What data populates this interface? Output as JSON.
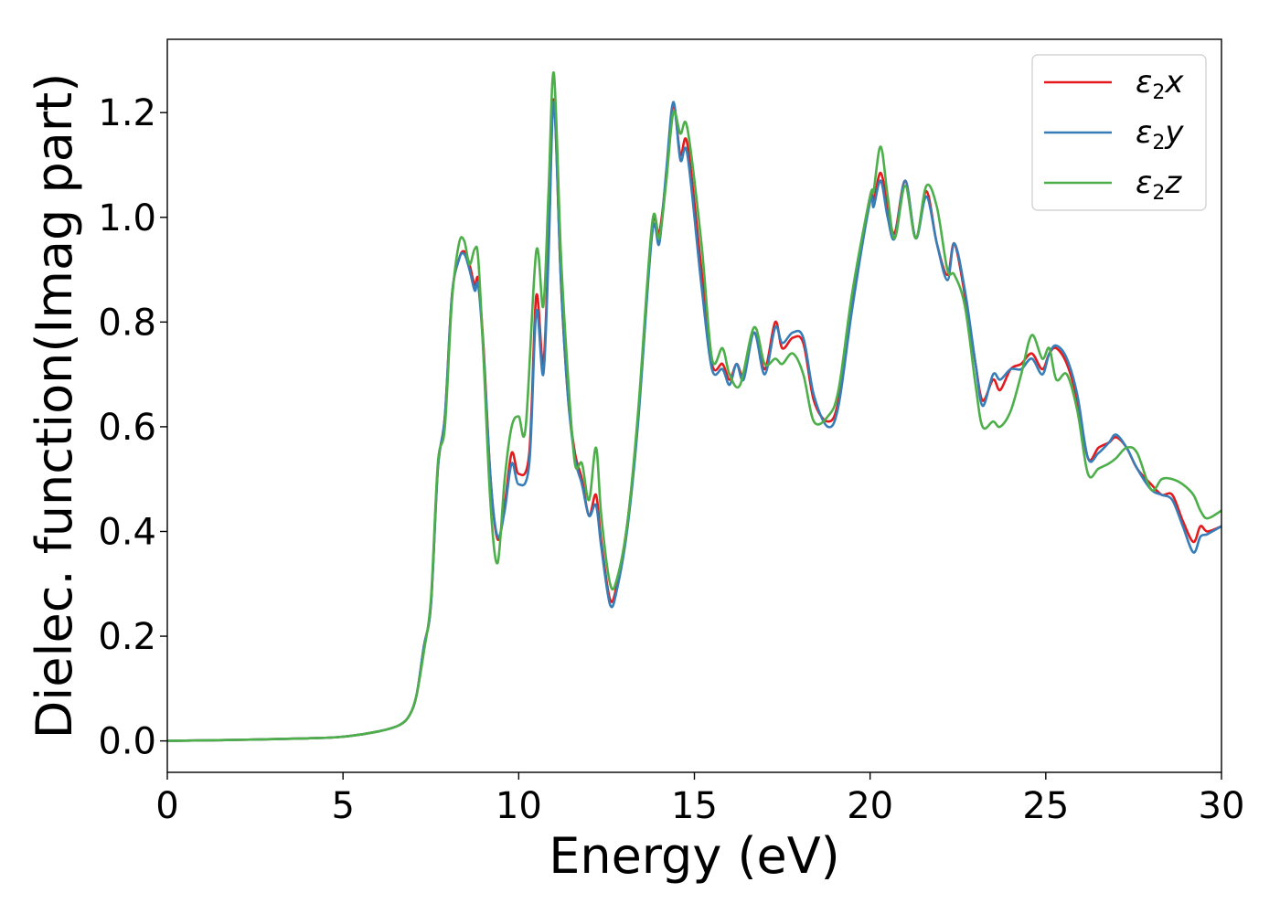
{
  "chart_data": {
    "type": "line",
    "xlabel": "Energy (eV)",
    "ylabel": "Dielec. function(Imag part)",
    "xlim": [
      0,
      30
    ],
    "ylim": [
      -0.06,
      1.34
    ],
    "x_ticks": [
      0,
      5,
      10,
      15,
      20,
      25,
      30
    ],
    "y_ticks": [
      0.0,
      0.2,
      0.4,
      0.6,
      0.8,
      1.0,
      1.2
    ],
    "x_tick_labels": [
      "0",
      "5",
      "10",
      "15",
      "20",
      "25",
      "30"
    ],
    "y_tick_labels": [
      "0.0",
      "0.2",
      "0.4",
      "0.6",
      "0.8",
      "1.0",
      "1.2"
    ],
    "grid": false,
    "legend_position": "top-right",
    "series": [
      {
        "name": "ε2x",
        "color": "#e41a1c",
        "points": [
          [
            0,
            0
          ],
          [
            2,
            0.002
          ],
          [
            4,
            0.005
          ],
          [
            5,
            0.008
          ],
          [
            6,
            0.018
          ],
          [
            6.6,
            0.03
          ],
          [
            6.9,
            0.05
          ],
          [
            7.1,
            0.09
          ],
          [
            7.3,
            0.18
          ],
          [
            7.5,
            0.26
          ],
          [
            7.7,
            0.52
          ],
          [
            7.9,
            0.62
          ],
          [
            8.1,
            0.85
          ],
          [
            8.3,
            0.92
          ],
          [
            8.45,
            0.935
          ],
          [
            8.6,
            0.91
          ],
          [
            8.75,
            0.87
          ],
          [
            8.85,
            0.88
          ],
          [
            9.0,
            0.75
          ],
          [
            9.2,
            0.5
          ],
          [
            9.4,
            0.385
          ],
          [
            9.6,
            0.45
          ],
          [
            9.8,
            0.55
          ],
          [
            10.0,
            0.51
          ],
          [
            10.3,
            0.55
          ],
          [
            10.5,
            0.85
          ],
          [
            10.7,
            0.72
          ],
          [
            10.85,
            0.95
          ],
          [
            11.0,
            1.225
          ],
          [
            11.2,
            0.88
          ],
          [
            11.4,
            0.66
          ],
          [
            11.6,
            0.55
          ],
          [
            11.8,
            0.5
          ],
          [
            12.0,
            0.43
          ],
          [
            12.2,
            0.47
          ],
          [
            12.35,
            0.38
          ],
          [
            12.6,
            0.27
          ],
          [
            12.8,
            0.3
          ],
          [
            13.1,
            0.42
          ],
          [
            13.4,
            0.62
          ],
          [
            13.8,
            0.98
          ],
          [
            14.0,
            0.97
          ],
          [
            14.2,
            1.08
          ],
          [
            14.4,
            1.215
          ],
          [
            14.6,
            1.12
          ],
          [
            14.8,
            1.14
          ],
          [
            15.2,
            0.9
          ],
          [
            15.5,
            0.72
          ],
          [
            15.8,
            0.72
          ],
          [
            16.0,
            0.69
          ],
          [
            16.2,
            0.72
          ],
          [
            16.4,
            0.7
          ],
          [
            16.7,
            0.78
          ],
          [
            17.0,
            0.71
          ],
          [
            17.3,
            0.8
          ],
          [
            17.5,
            0.75
          ],
          [
            17.8,
            0.77
          ],
          [
            18.1,
            0.76
          ],
          [
            18.4,
            0.65
          ],
          [
            18.8,
            0.61
          ],
          [
            19.1,
            0.65
          ],
          [
            19.5,
            0.84
          ],
          [
            20.0,
            1.04
          ],
          [
            20.1,
            1.03
          ],
          [
            20.3,
            1.085
          ],
          [
            20.5,
            1.02
          ],
          [
            20.7,
            0.97
          ],
          [
            21.0,
            1.07
          ],
          [
            21.3,
            0.96
          ],
          [
            21.6,
            1.05
          ],
          [
            21.9,
            0.95
          ],
          [
            22.2,
            0.89
          ],
          [
            22.4,
            0.95
          ],
          [
            22.7,
            0.85
          ],
          [
            23.0,
            0.72
          ],
          [
            23.2,
            0.65
          ],
          [
            23.5,
            0.69
          ],
          [
            23.7,
            0.67
          ],
          [
            24.0,
            0.71
          ],
          [
            24.3,
            0.72
          ],
          [
            24.6,
            0.74
          ],
          [
            24.9,
            0.71
          ],
          [
            25.1,
            0.74
          ],
          [
            25.3,
            0.75
          ],
          [
            25.6,
            0.72
          ],
          [
            25.9,
            0.65
          ],
          [
            26.2,
            0.54
          ],
          [
            26.5,
            0.56
          ],
          [
            26.8,
            0.57
          ],
          [
            27.0,
            0.58
          ],
          [
            27.3,
            0.56
          ],
          [
            27.6,
            0.52
          ],
          [
            28.0,
            0.49
          ],
          [
            28.3,
            0.47
          ],
          [
            28.6,
            0.47
          ],
          [
            28.9,
            0.42
          ],
          [
            29.2,
            0.38
          ],
          [
            29.4,
            0.41
          ],
          [
            29.6,
            0.4
          ],
          [
            30,
            0.41
          ]
        ]
      },
      {
        "name": "ε2y",
        "color": "#377eb8",
        "points": [
          [
            0,
            0
          ],
          [
            2,
            0.002
          ],
          [
            4,
            0.005
          ],
          [
            5,
            0.008
          ],
          [
            6,
            0.018
          ],
          [
            6.6,
            0.03
          ],
          [
            6.9,
            0.05
          ],
          [
            7.1,
            0.09
          ],
          [
            7.3,
            0.18
          ],
          [
            7.5,
            0.26
          ],
          [
            7.7,
            0.52
          ],
          [
            7.9,
            0.62
          ],
          [
            8.1,
            0.85
          ],
          [
            8.3,
            0.92
          ],
          [
            8.45,
            0.93
          ],
          [
            8.6,
            0.9
          ],
          [
            8.75,
            0.86
          ],
          [
            8.85,
            0.87
          ],
          [
            9.0,
            0.74
          ],
          [
            9.2,
            0.5
          ],
          [
            9.4,
            0.39
          ],
          [
            9.6,
            0.44
          ],
          [
            9.8,
            0.53
          ],
          [
            10.0,
            0.49
          ],
          [
            10.3,
            0.53
          ],
          [
            10.5,
            0.82
          ],
          [
            10.7,
            0.7
          ],
          [
            10.85,
            0.93
          ],
          [
            11.0,
            1.22
          ],
          [
            11.2,
            0.88
          ],
          [
            11.4,
            0.66
          ],
          [
            11.6,
            0.54
          ],
          [
            11.8,
            0.49
          ],
          [
            12.0,
            0.43
          ],
          [
            12.2,
            0.45
          ],
          [
            12.35,
            0.37
          ],
          [
            12.6,
            0.26
          ],
          [
            12.8,
            0.29
          ],
          [
            13.1,
            0.41
          ],
          [
            13.4,
            0.61
          ],
          [
            13.8,
            0.97
          ],
          [
            14.0,
            0.95
          ],
          [
            14.2,
            1.09
          ],
          [
            14.4,
            1.22
          ],
          [
            14.6,
            1.11
          ],
          [
            14.8,
            1.12
          ],
          [
            15.2,
            0.87
          ],
          [
            15.5,
            0.71
          ],
          [
            15.8,
            0.71
          ],
          [
            16.0,
            0.68
          ],
          [
            16.2,
            0.72
          ],
          [
            16.4,
            0.69
          ],
          [
            16.7,
            0.78
          ],
          [
            17.0,
            0.7
          ],
          [
            17.3,
            0.79
          ],
          [
            17.5,
            0.76
          ],
          [
            17.8,
            0.78
          ],
          [
            18.1,
            0.77
          ],
          [
            18.4,
            0.66
          ],
          [
            18.8,
            0.6
          ],
          [
            19.1,
            0.64
          ],
          [
            19.5,
            0.83
          ],
          [
            20.0,
            1.03
          ],
          [
            20.1,
            1.02
          ],
          [
            20.3,
            1.07
          ],
          [
            20.5,
            1.0
          ],
          [
            20.7,
            0.96
          ],
          [
            21.0,
            1.07
          ],
          [
            21.3,
            0.96
          ],
          [
            21.6,
            1.04
          ],
          [
            21.9,
            0.95
          ],
          [
            22.2,
            0.88
          ],
          [
            22.4,
            0.95
          ],
          [
            22.7,
            0.86
          ],
          [
            23.0,
            0.72
          ],
          [
            23.2,
            0.64
          ],
          [
            23.5,
            0.7
          ],
          [
            23.7,
            0.69
          ],
          [
            24.0,
            0.71
          ],
          [
            24.3,
            0.71
          ],
          [
            24.6,
            0.73
          ],
          [
            24.9,
            0.7
          ],
          [
            25.1,
            0.74
          ],
          [
            25.3,
            0.755
          ],
          [
            25.6,
            0.73
          ],
          [
            25.9,
            0.66
          ],
          [
            26.2,
            0.54
          ],
          [
            26.5,
            0.55
          ],
          [
            26.8,
            0.57
          ],
          [
            27.0,
            0.585
          ],
          [
            27.3,
            0.56
          ],
          [
            27.6,
            0.52
          ],
          [
            28.0,
            0.48
          ],
          [
            28.3,
            0.47
          ],
          [
            28.6,
            0.46
          ],
          [
            28.9,
            0.41
          ],
          [
            29.2,
            0.36
          ],
          [
            29.4,
            0.39
          ],
          [
            29.6,
            0.395
          ],
          [
            30,
            0.41
          ]
        ]
      },
      {
        "name": "ε2z",
        "color": "#4daf4a",
        "points": [
          [
            0,
            0
          ],
          [
            2,
            0.002
          ],
          [
            4,
            0.005
          ],
          [
            5,
            0.008
          ],
          [
            6,
            0.018
          ],
          [
            6.6,
            0.03
          ],
          [
            6.9,
            0.05
          ],
          [
            7.1,
            0.09
          ],
          [
            7.3,
            0.17
          ],
          [
            7.5,
            0.27
          ],
          [
            7.7,
            0.53
          ],
          [
            7.9,
            0.6
          ],
          [
            8.1,
            0.84
          ],
          [
            8.3,
            0.95
          ],
          [
            8.45,
            0.955
          ],
          [
            8.6,
            0.91
          ],
          [
            8.75,
            0.94
          ],
          [
            8.85,
            0.92
          ],
          [
            9.0,
            0.73
          ],
          [
            9.2,
            0.45
          ],
          [
            9.4,
            0.34
          ],
          [
            9.6,
            0.5
          ],
          [
            9.8,
            0.6
          ],
          [
            10.0,
            0.62
          ],
          [
            10.2,
            0.6
          ],
          [
            10.5,
            0.935
          ],
          [
            10.7,
            0.83
          ],
          [
            10.85,
            1.05
          ],
          [
            11.0,
            1.275
          ],
          [
            11.2,
            0.93
          ],
          [
            11.4,
            0.7
          ],
          [
            11.6,
            0.53
          ],
          [
            11.8,
            0.53
          ],
          [
            12.0,
            0.46
          ],
          [
            12.2,
            0.56
          ],
          [
            12.35,
            0.43
          ],
          [
            12.6,
            0.3
          ],
          [
            12.8,
            0.31
          ],
          [
            13.1,
            0.42
          ],
          [
            13.4,
            0.63
          ],
          [
            13.8,
            0.99
          ],
          [
            14.0,
            0.96
          ],
          [
            14.2,
            1.07
          ],
          [
            14.4,
            1.2
          ],
          [
            14.6,
            1.16
          ],
          [
            14.8,
            1.17
          ],
          [
            15.2,
            0.95
          ],
          [
            15.5,
            0.73
          ],
          [
            15.8,
            0.75
          ],
          [
            16.0,
            0.7
          ],
          [
            16.3,
            0.68
          ],
          [
            16.7,
            0.79
          ],
          [
            17.0,
            0.72
          ],
          [
            17.3,
            0.73
          ],
          [
            17.5,
            0.72
          ],
          [
            17.8,
            0.74
          ],
          [
            18.1,
            0.7
          ],
          [
            18.4,
            0.61
          ],
          [
            18.8,
            0.62
          ],
          [
            19.1,
            0.67
          ],
          [
            19.5,
            0.86
          ],
          [
            20.0,
            1.04
          ],
          [
            20.1,
            1.05
          ],
          [
            20.3,
            1.135
          ],
          [
            20.5,
            1.04
          ],
          [
            20.7,
            0.96
          ],
          [
            21.0,
            1.06
          ],
          [
            21.3,
            0.96
          ],
          [
            21.6,
            1.06
          ],
          [
            21.9,
            1.02
          ],
          [
            22.2,
            0.9
          ],
          [
            22.4,
            0.89
          ],
          [
            22.7,
            0.83
          ],
          [
            23.0,
            0.68
          ],
          [
            23.2,
            0.6
          ],
          [
            23.5,
            0.61
          ],
          [
            23.7,
            0.6
          ],
          [
            24.0,
            0.63
          ],
          [
            24.3,
            0.7
          ],
          [
            24.6,
            0.775
          ],
          [
            24.9,
            0.73
          ],
          [
            25.1,
            0.75
          ],
          [
            25.3,
            0.69
          ],
          [
            25.6,
            0.7
          ],
          [
            25.9,
            0.63
          ],
          [
            26.2,
            0.51
          ],
          [
            26.5,
            0.52
          ],
          [
            26.8,
            0.53
          ],
          [
            27.0,
            0.54
          ],
          [
            27.3,
            0.56
          ],
          [
            27.6,
            0.55
          ],
          [
            28.0,
            0.48
          ],
          [
            28.3,
            0.5
          ],
          [
            28.6,
            0.5
          ],
          [
            28.9,
            0.49
          ],
          [
            29.2,
            0.47
          ],
          [
            29.4,
            0.44
          ],
          [
            29.6,
            0.425
          ],
          [
            30,
            0.44
          ]
        ]
      }
    ]
  }
}
